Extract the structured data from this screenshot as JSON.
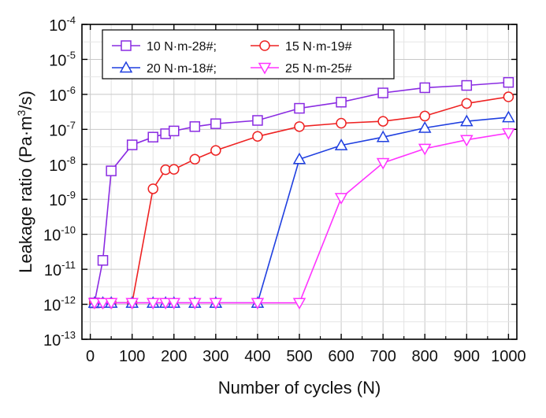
{
  "chart_data": {
    "type": "line",
    "xlabel": "Number of cycles (N)",
    "ylabel_main": "Leakage ratio (Pa·m",
    "ylabel_sup": "3",
    "ylabel_tail": "/s)",
    "xlim": [
      -20,
      1020
    ],
    "xticks": [
      0,
      100,
      200,
      300,
      400,
      500,
      600,
      700,
      800,
      900,
      1000
    ],
    "xtick_labels": [
      "0",
      "100",
      "200",
      "300",
      "400",
      "500",
      "600",
      "700",
      "800",
      "900",
      "1000"
    ],
    "ylog": true,
    "ylim_exp": [
      -13,
      -4
    ],
    "yticks_exp": [
      -13,
      -12,
      -11,
      -10,
      -9,
      -8,
      -7,
      -6,
      -5,
      -4
    ],
    "ytick_base": "10",
    "ytick_exps": [
      "-13",
      "-12",
      "-11",
      "-10",
      "-9",
      "-8",
      "-7",
      "-6",
      "-5",
      "-4"
    ],
    "grid": true,
    "legend_position": "top-left",
    "series": [
      {
        "name": "10 N·m-28#;",
        "color": "#8a2be2",
        "marker": "square",
        "x": [
          10,
          30,
          50,
          100,
          150,
          180,
          200,
          250,
          300,
          400,
          500,
          600,
          700,
          800,
          900,
          1000
        ],
        "y": [
          1.1e-12,
          1.8e-11,
          6.5e-09,
          3.6e-08,
          6e-08,
          7.5e-08,
          9e-08,
          1.2e-07,
          1.45e-07,
          1.8e-07,
          4e-07,
          6e-07,
          1.1e-06,
          1.55e-06,
          1.8e-06,
          2.2e-06
        ]
      },
      {
        "name": "15 N·m-19#",
        "color": "#ee2222",
        "marker": "circle",
        "x": [
          10,
          30,
          50,
          100,
          150,
          180,
          200,
          250,
          300,
          400,
          500,
          600,
          700,
          800,
          900,
          1000
        ],
        "y": [
          1.1e-12,
          1.1e-12,
          1.1e-12,
          1.1e-12,
          2e-09,
          7e-09,
          7.2e-09,
          1.4e-08,
          2.5e-08,
          6.3e-08,
          1.2e-07,
          1.5e-07,
          1.7e-07,
          2.4e-07,
          5.5e-07,
          8.5e-07
        ]
      },
      {
        "name": "20 N·m-18#;",
        "color": "#1f3fe0",
        "marker": "triangle-up",
        "x": [
          10,
          30,
          50,
          100,
          150,
          180,
          200,
          250,
          300,
          400,
          500,
          600,
          700,
          800,
          900,
          1000
        ],
        "y": [
          1.1e-12,
          1.1e-12,
          1.1e-12,
          1.1e-12,
          1.1e-12,
          1.1e-12,
          1.1e-12,
          1.1e-12,
          1.1e-12,
          1.1e-12,
          1.4e-08,
          3.5e-08,
          6e-08,
          1.1e-07,
          1.7e-07,
          2.2e-07
        ]
      },
      {
        "name": "25 N·m-25#",
        "color": "#ff33ff",
        "marker": "triangle-down",
        "x": [
          10,
          30,
          50,
          100,
          150,
          180,
          200,
          250,
          300,
          400,
          500,
          600,
          700,
          800,
          900,
          1000
        ],
        "y": [
          1.1e-12,
          1.1e-12,
          1.1e-12,
          1.1e-12,
          1.1e-12,
          1.1e-12,
          1.1e-12,
          1.1e-12,
          1.1e-12,
          1.1e-12,
          1.1e-12,
          1.1e-09,
          1.1e-08,
          2.8e-08,
          5e-08,
          7.8e-08
        ]
      }
    ]
  }
}
